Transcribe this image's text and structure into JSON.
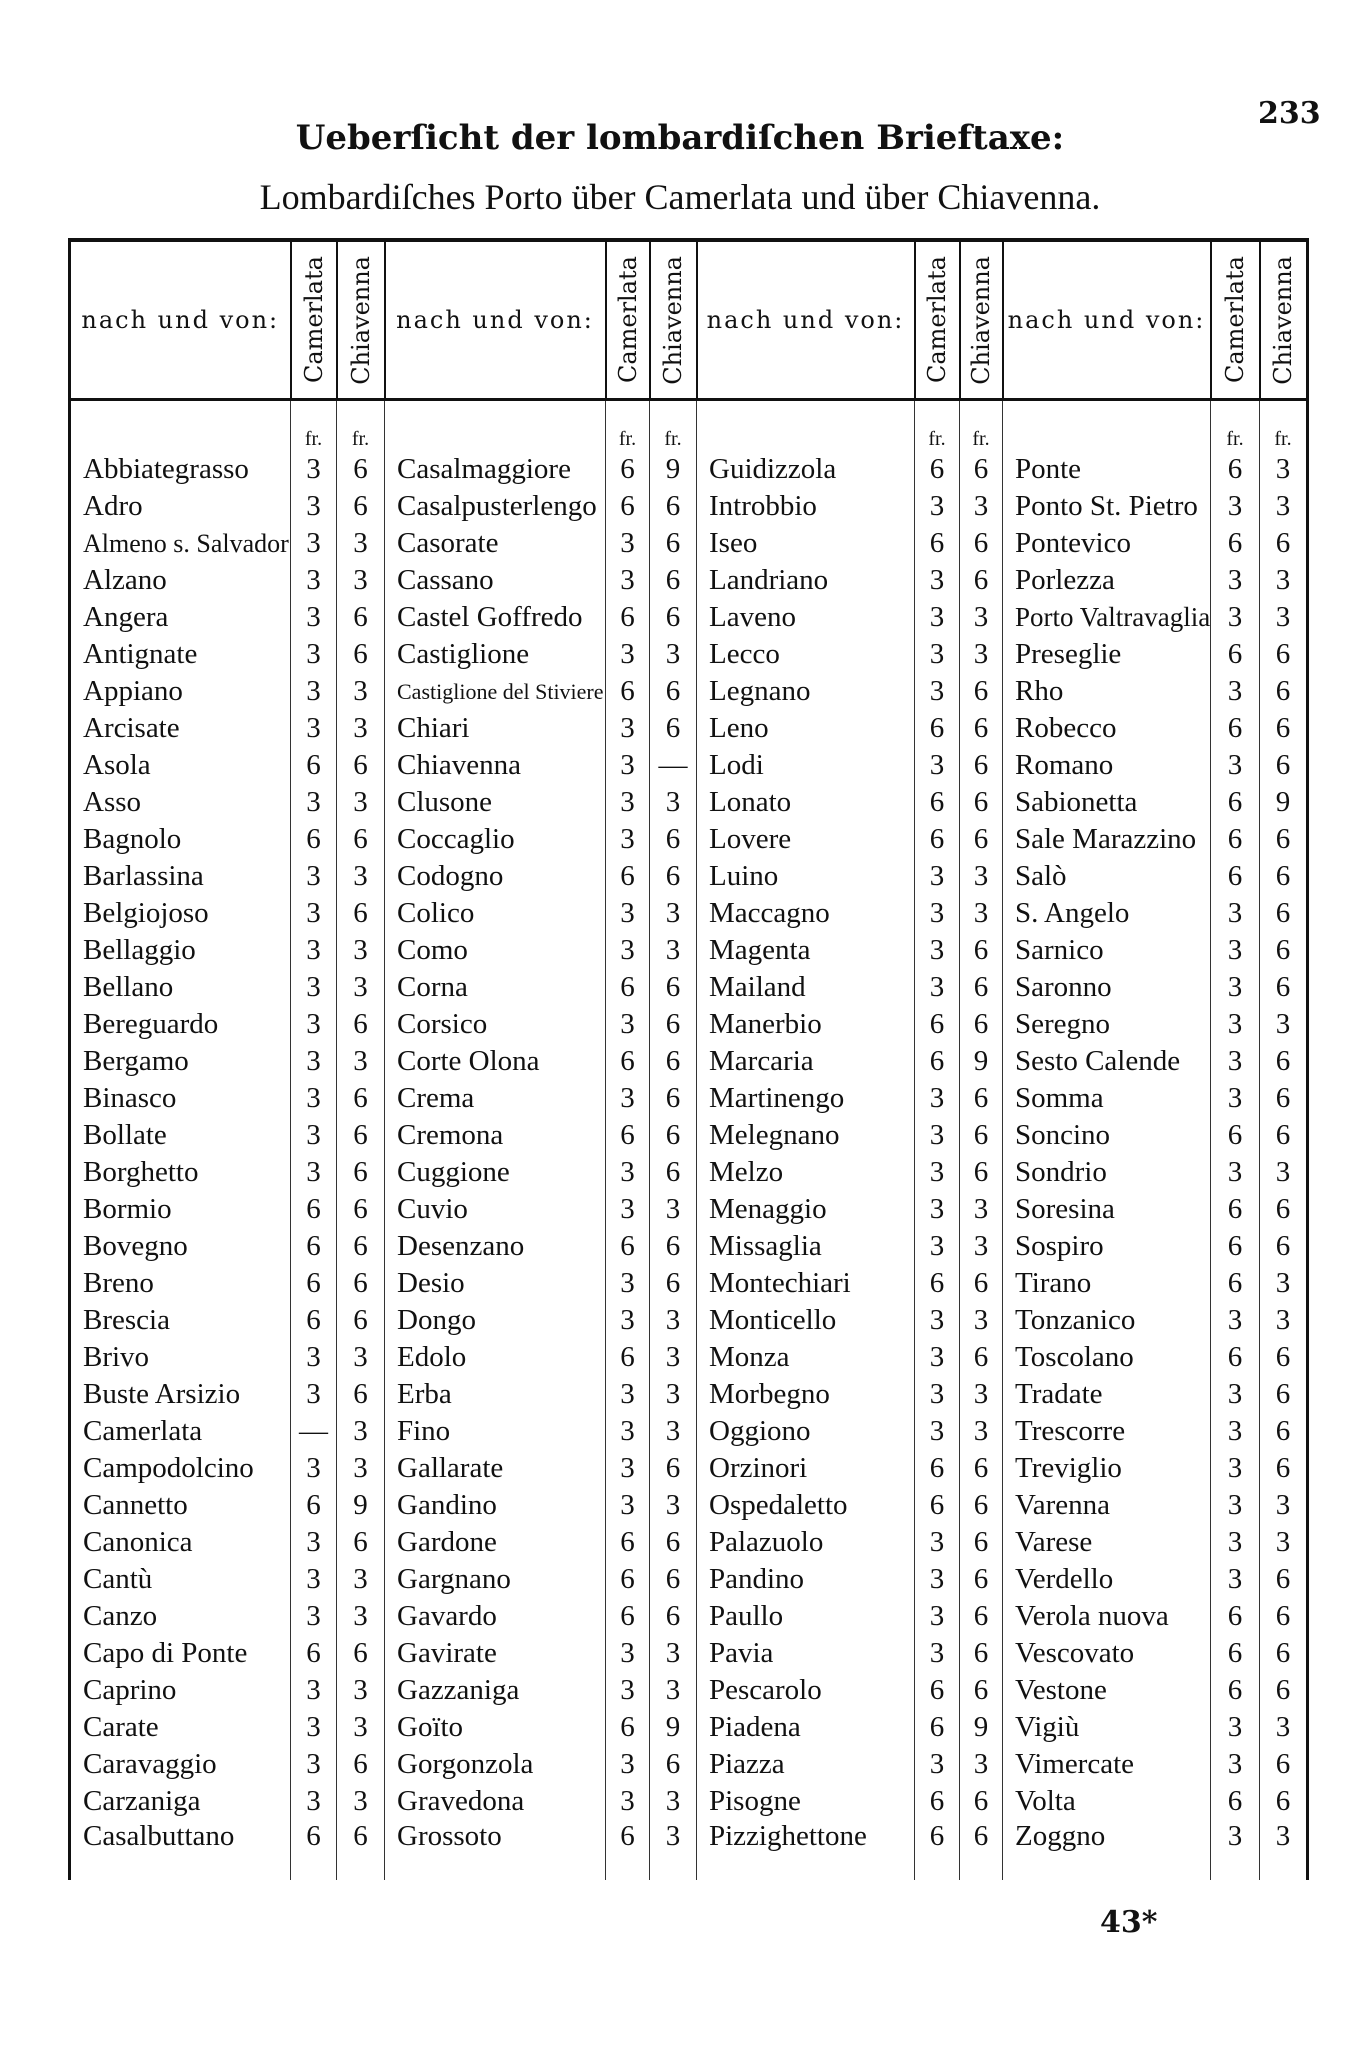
{
  "page_number": "233",
  "title_line1": "Ueberſicht der lombardiſchen Brieftaxe:",
  "title_line2": "Lombardiſches Porto über Camerlata und über Chiavenna.",
  "footer_mark": "43*",
  "table": {
    "header_name": "nach und von:",
    "header_col_a": "Camerlata",
    "header_col_b": "Chiavenna",
    "unit": "fr.",
    "columns": [
      [
        [
          "Abbiategrasso",
          "3",
          "6"
        ],
        [
          "Adro",
          "3",
          "6"
        ],
        [
          "Almeno s. Salvador",
          "3",
          "3"
        ],
        [
          "Alzano",
          "3",
          "3"
        ],
        [
          "Angera",
          "3",
          "6"
        ],
        [
          "Antignate",
          "3",
          "6"
        ],
        [
          "Appiano",
          "3",
          "3"
        ],
        [
          "Arcisate",
          "3",
          "3"
        ],
        [
          "Asola",
          "6",
          "6"
        ],
        [
          "Asso",
          "3",
          "3"
        ],
        [
          "Bagnolo",
          "6",
          "6"
        ],
        [
          "Barlassina",
          "3",
          "3"
        ],
        [
          "Belgiojoso",
          "3",
          "6"
        ],
        [
          "Bellaggio",
          "3",
          "3"
        ],
        [
          "Bellano",
          "3",
          "3"
        ],
        [
          "Bereguardo",
          "3",
          "6"
        ],
        [
          "Bergamo",
          "3",
          "3"
        ],
        [
          "Binasco",
          "3",
          "6"
        ],
        [
          "Bollate",
          "3",
          "6"
        ],
        [
          "Borghetto",
          "3",
          "6"
        ],
        [
          "Bormio",
          "6",
          "6"
        ],
        [
          "Bovegno",
          "6",
          "6"
        ],
        [
          "Breno",
          "6",
          "6"
        ],
        [
          "Brescia",
          "6",
          "6"
        ],
        [
          "Brivo",
          "3",
          "3"
        ],
        [
          "Buste Arsizio",
          "3",
          "6"
        ],
        [
          "Camerlata",
          "—",
          "3"
        ],
        [
          "Campodolcino",
          "3",
          "3"
        ],
        [
          "Cannetto",
          "6",
          "9"
        ],
        [
          "Canonica",
          "3",
          "6"
        ],
        [
          "Cantù",
          "3",
          "3"
        ],
        [
          "Canzo",
          "3",
          "3"
        ],
        [
          "Capo di Ponte",
          "6",
          "6"
        ],
        [
          "Caprino",
          "3",
          "3"
        ],
        [
          "Carate",
          "3",
          "3"
        ],
        [
          "Caravaggio",
          "3",
          "6"
        ],
        [
          "Carzaniga",
          "3",
          "3"
        ],
        [
          "Casalbuttano",
          "6",
          "6"
        ]
      ],
      [
        [
          "Casalmaggiore",
          "6",
          "9"
        ],
        [
          "Casalpusterlengo",
          "6",
          "6"
        ],
        [
          "Casorate",
          "3",
          "6"
        ],
        [
          "Cassano",
          "3",
          "6"
        ],
        [
          "Castel Goffredo",
          "6",
          "6"
        ],
        [
          "Castiglione",
          "3",
          "3"
        ],
        [
          "Castiglione del Stiviere",
          "6",
          "6"
        ],
        [
          "Chiari",
          "3",
          "6"
        ],
        [
          "Chiavenna",
          "3",
          "—"
        ],
        [
          "Clusone",
          "3",
          "3"
        ],
        [
          "Coccaglio",
          "3",
          "6"
        ],
        [
          "Codogno",
          "6",
          "6"
        ],
        [
          "Colico",
          "3",
          "3"
        ],
        [
          "Como",
          "3",
          "3"
        ],
        [
          "Corna",
          "6",
          "6"
        ],
        [
          "Corsico",
          "3",
          "6"
        ],
        [
          "Corte Olona",
          "6",
          "6"
        ],
        [
          "Crema",
          "3",
          "6"
        ],
        [
          "Cremona",
          "6",
          "6"
        ],
        [
          "Cuggione",
          "3",
          "6"
        ],
        [
          "Cuvio",
          "3",
          "3"
        ],
        [
          "Desenzano",
          "6",
          "6"
        ],
        [
          "Desio",
          "3",
          "6"
        ],
        [
          "Dongo",
          "3",
          "3"
        ],
        [
          "Edolo",
          "6",
          "3"
        ],
        [
          "Erba",
          "3",
          "3"
        ],
        [
          "Fino",
          "3",
          "3"
        ],
        [
          "Gallarate",
          "3",
          "6"
        ],
        [
          "Gandino",
          "3",
          "3"
        ],
        [
          "Gardone",
          "6",
          "6"
        ],
        [
          "Gargnano",
          "6",
          "6"
        ],
        [
          "Gavardo",
          "6",
          "6"
        ],
        [
          "Gavirate",
          "3",
          "3"
        ],
        [
          "Gazzaniga",
          "3",
          "3"
        ],
        [
          "Goïto",
          "6",
          "9"
        ],
        [
          "Gorgonzola",
          "3",
          "6"
        ],
        [
          "Gravedona",
          "3",
          "3"
        ],
        [
          "Grossoto",
          "6",
          "3"
        ]
      ],
      [
        [
          "Guidizzola",
          "6",
          "6"
        ],
        [
          "Introbbio",
          "3",
          "3"
        ],
        [
          "Iseo",
          "6",
          "6"
        ],
        [
          "Landriano",
          "3",
          "6"
        ],
        [
          "Laveno",
          "3",
          "3"
        ],
        [
          "Lecco",
          "3",
          "3"
        ],
        [
          "Legnano",
          "3",
          "6"
        ],
        [
          "Leno",
          "6",
          "6"
        ],
        [
          "Lodi",
          "3",
          "6"
        ],
        [
          "Lonato",
          "6",
          "6"
        ],
        [
          "Lovere",
          "6",
          "6"
        ],
        [
          "Luino",
          "3",
          "3"
        ],
        [
          "Maccagno",
          "3",
          "3"
        ],
        [
          "Magenta",
          "3",
          "6"
        ],
        [
          "Mailand",
          "3",
          "6"
        ],
        [
          "Manerbio",
          "6",
          "6"
        ],
        [
          "Marcaria",
          "6",
          "9"
        ],
        [
          "Martinengo",
          "3",
          "6"
        ],
        [
          "Melegnano",
          "3",
          "6"
        ],
        [
          "Melzo",
          "3",
          "6"
        ],
        [
          "Menaggio",
          "3",
          "3"
        ],
        [
          "Missaglia",
          "3",
          "3"
        ],
        [
          "Montechiari",
          "6",
          "6"
        ],
        [
          "Monticello",
          "3",
          "3"
        ],
        [
          "Monza",
          "3",
          "6"
        ],
        [
          "Morbegno",
          "3",
          "3"
        ],
        [
          "Oggiono",
          "3",
          "3"
        ],
        [
          "Orzinori",
          "6",
          "6"
        ],
        [
          "Ospedaletto",
          "6",
          "6"
        ],
        [
          "Palazuolo",
          "3",
          "6"
        ],
        [
          "Pandino",
          "3",
          "6"
        ],
        [
          "Paullo",
          "3",
          "6"
        ],
        [
          "Pavia",
          "3",
          "6"
        ],
        [
          "Pescarolo",
          "6",
          "6"
        ],
        [
          "Piadena",
          "6",
          "9"
        ],
        [
          "Piazza",
          "3",
          "3"
        ],
        [
          "Pisogne",
          "6",
          "6"
        ],
        [
          "Pizzighettone",
          "6",
          "6"
        ]
      ],
      [
        [
          "Ponte",
          "6",
          "3"
        ],
        [
          "Ponto St. Pietro",
          "3",
          "3"
        ],
        [
          "Pontevico",
          "6",
          "6"
        ],
        [
          "Porlezza",
          "3",
          "3"
        ],
        [
          "Porto Valtravaglia",
          "3",
          "3"
        ],
        [
          "Preseglie",
          "6",
          "6"
        ],
        [
          "Rho",
          "3",
          "6"
        ],
        [
          "Robecco",
          "6",
          "6"
        ],
        [
          "Romano",
          "3",
          "6"
        ],
        [
          "Sabionetta",
          "6",
          "9"
        ],
        [
          "Sale Marazzino",
          "6",
          "6"
        ],
        [
          "Salò",
          "6",
          "6"
        ],
        [
          "S. Angelo",
          "3",
          "6"
        ],
        [
          "Sarnico",
          "3",
          "6"
        ],
        [
          "Saronno",
          "3",
          "6"
        ],
        [
          "Seregno",
          "3",
          "3"
        ],
        [
          "Sesto Calende",
          "3",
          "6"
        ],
        [
          "Somma",
          "3",
          "6"
        ],
        [
          "Soncino",
          "6",
          "6"
        ],
        [
          "Sondrio",
          "3",
          "3"
        ],
        [
          "Soresina",
          "6",
          "6"
        ],
        [
          "Sospiro",
          "6",
          "6"
        ],
        [
          "Tirano",
          "6",
          "3"
        ],
        [
          "Tonzanico",
          "3",
          "3"
        ],
        [
          "Toscolano",
          "6",
          "6"
        ],
        [
          "Tradate",
          "3",
          "6"
        ],
        [
          "Trescorre",
          "3",
          "6"
        ],
        [
          "Treviglio",
          "3",
          "6"
        ],
        [
          "Varenna",
          "3",
          "3"
        ],
        [
          "Varese",
          "3",
          "3"
        ],
        [
          "Verdello",
          "3",
          "6"
        ],
        [
          "Verola nuova",
          "6",
          "6"
        ],
        [
          "Vescovato",
          "6",
          "6"
        ],
        [
          "Vestone",
          "6",
          "6"
        ],
        [
          "Vigiù",
          "3",
          "3"
        ],
        [
          "Vimercate",
          "3",
          "6"
        ],
        [
          "Volta",
          "6",
          "6"
        ],
        [
          "Zoggno",
          "3",
          "3"
        ]
      ]
    ]
  }
}
